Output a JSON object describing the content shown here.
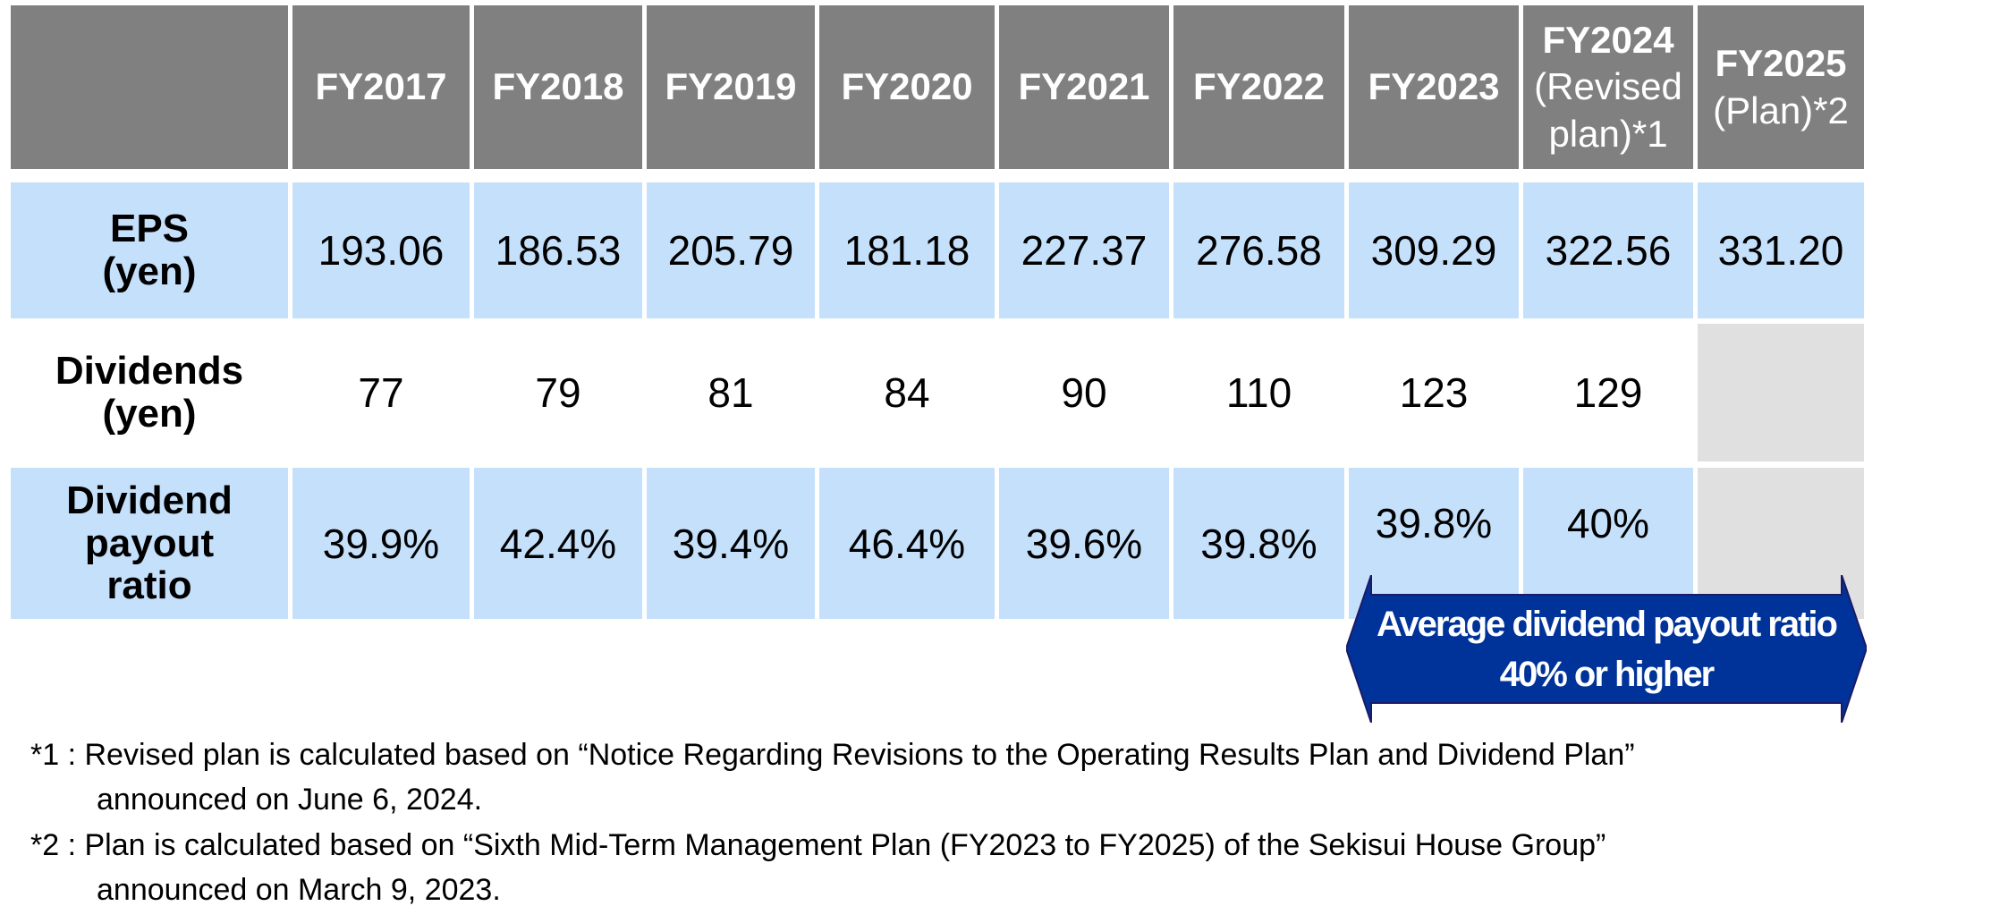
{
  "table": {
    "columns": [
      {
        "label": "FY2017",
        "sub": ""
      },
      {
        "label": "FY2018",
        "sub": ""
      },
      {
        "label": "FY2019",
        "sub": ""
      },
      {
        "label": "FY2020",
        "sub": ""
      },
      {
        "label": "FY2021",
        "sub": ""
      },
      {
        "label": "FY2022",
        "sub": ""
      },
      {
        "label": "FY2023",
        "sub": ""
      },
      {
        "label": "FY2024",
        "sub": "(Revised plan)*1"
      },
      {
        "label": "FY2025",
        "sub": "(Plan)*2"
      }
    ],
    "rows": [
      {
        "label_line1": "EPS",
        "label_line2": "(yen)",
        "label_line3": "",
        "values": [
          "193.06",
          "186.53",
          "205.79",
          "181.18",
          "227.37",
          "276.58",
          "309.29",
          "322.56",
          "331.20"
        ]
      },
      {
        "label_line1": "Dividends",
        "label_line2": "(yen)",
        "label_line3": "",
        "values": [
          "77",
          "79",
          "81",
          "84",
          "90",
          "110",
          "123",
          "129",
          ""
        ]
      },
      {
        "label_line1": "Dividend",
        "label_line2": "payout",
        "label_line3": "ratio",
        "values": [
          "39.9%",
          "42.4%",
          "39.4%",
          "46.4%",
          "39.6%",
          "39.8%",
          "39.8%",
          "40%",
          ""
        ]
      }
    ]
  },
  "banner": {
    "line1": "Average dividend payout ratio",
    "line2": "40% or higher",
    "color": "#003399"
  },
  "notes": [
    {
      "marker": "*1 : ",
      "text": "Revised plan is calculated based on “Notice Regarding Revisions to the Operating Results Plan and Dividend Plan”",
      "cont": "announced on June 6, 2024."
    },
    {
      "marker": "*2 : ",
      "text": "Plan is calculated based on “Sixth Mid-Term Management Plan (FY2023 to FY2025) of the Sekisui House Group”",
      "cont": "announced on March 9, 2023."
    }
  ],
  "colors": {
    "header": "#808080",
    "row_blue": "#c5e0fb",
    "empty": "#e0e0e0"
  }
}
